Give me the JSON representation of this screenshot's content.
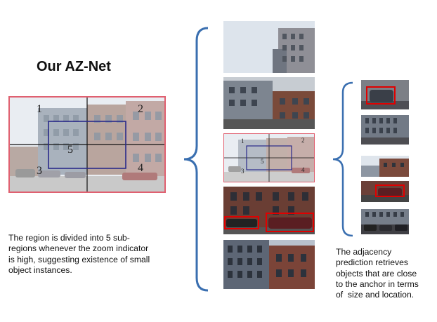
{
  "title": "Our AZ-Net",
  "left_caption": "The region is divided into 5 sub-regions whenever the zoom indicator is high, suggesting existence of small object instances.",
  "left_caption_lines": [
    "The region is divided into 5 sub-",
    "regions whenever the zoom indicator",
    "is high, suggesting existence of small",
    "object instances."
  ],
  "right_caption_lines": [
    "The adjacency",
    "prediction retrieves",
    "objects that are close",
    "to the anchor in terms",
    "of  size and location."
  ],
  "subregion_labels": [
    "1",
    "2",
    "3",
    "4",
    "5"
  ],
  "colors": {
    "grid": "#111111",
    "region_border": "#e06070",
    "center_box": "#2a2a8a",
    "detection_box": "#e00000",
    "brace": "#3a6fb0"
  }
}
